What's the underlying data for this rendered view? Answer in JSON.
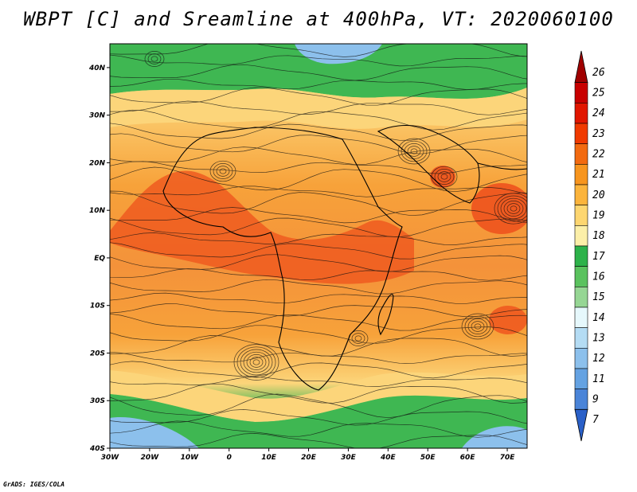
{
  "title": "WBPT [C] and Sreamline at 400hPa, VT: 2020060100",
  "credit": "GrADS: IGES/COLA",
  "map": {
    "lon_range": [
      -30,
      75
    ],
    "lat_range": [
      -40,
      45
    ],
    "lon_ticks": [
      {
        "value": -30,
        "label": "30W"
      },
      {
        "value": -20,
        "label": "20W"
      },
      {
        "value": -10,
        "label": "10W"
      },
      {
        "value": 0,
        "label": "0"
      },
      {
        "value": 10,
        "label": "10E"
      },
      {
        "value": 20,
        "label": "20E"
      },
      {
        "value": 30,
        "label": "30E"
      },
      {
        "value": 40,
        "label": "40E"
      },
      {
        "value": 50,
        "label": "50E"
      },
      {
        "value": 60,
        "label": "60E"
      },
      {
        "value": 70,
        "label": "70E"
      }
    ],
    "lat_ticks": [
      {
        "value": 40,
        "label": "40N"
      },
      {
        "value": 30,
        "label": "30N"
      },
      {
        "value": 20,
        "label": "20N"
      },
      {
        "value": 10,
        "label": "10N"
      },
      {
        "value": 0,
        "label": "EQ"
      },
      {
        "value": -10,
        "label": "10S"
      },
      {
        "value": -20,
        "label": "20S"
      },
      {
        "value": -30,
        "label": "30S"
      },
      {
        "value": -40,
        "label": "40S"
      }
    ]
  },
  "colorbar": {
    "levels": [
      "26",
      "25",
      "24",
      "23",
      "22",
      "21",
      "20",
      "19",
      "18",
      "17",
      "16",
      "15",
      "14",
      "13",
      "12",
      "11",
      "9",
      "7"
    ],
    "colors": [
      "#a00000",
      "#c80000",
      "#e11600",
      "#f03a00",
      "#f26a10",
      "#f7951e",
      "#fbb43c",
      "#fdd670",
      "#fcefa8",
      "#2db24a",
      "#5ac25e",
      "#96d694",
      "#e6f8fc",
      "#b4dcf4",
      "#8cc0ec",
      "#64a2e2",
      "#4a84d8",
      "#2a60c8"
    ]
  },
  "colors": {
    "band_orange": "#f7a23a",
    "band_red": "#ef5a20",
    "band_yellow": "#fcd57a",
    "band_green": "#3fb752",
    "band_blue": "#8cc0ec",
    "streamline": "#111111"
  }
}
